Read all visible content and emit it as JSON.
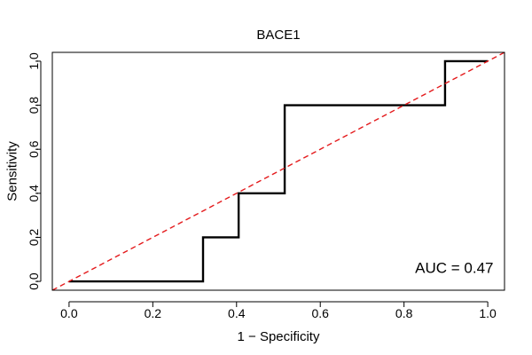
{
  "chart_data": {
    "type": "line",
    "title": "BACE1",
    "xlabel": "1 − Specificity",
    "ylabel": "Sensitivity",
    "xlim": [
      -0.04,
      1.04
    ],
    "ylim": [
      -0.04,
      1.04
    ],
    "x_ticks": [
      0.0,
      0.2,
      0.4,
      0.6,
      0.8,
      1.0
    ],
    "x_tick_labels": [
      "0.0",
      "0.2",
      "0.4",
      "0.6",
      "0.8",
      "1.0"
    ],
    "y_ticks": [
      0.0,
      0.2,
      0.4,
      0.6,
      0.8,
      1.0
    ],
    "y_tick_labels": [
      "0.0",
      "0.2",
      "0.4",
      "0.6",
      "0.8",
      "1.0"
    ],
    "grid": false,
    "legend": "none",
    "series": [
      {
        "x": [
          0.0,
          0.32,
          0.32,
          0.405,
          0.405,
          0.515,
          0.515,
          0.898,
          0.898,
          1.0
        ],
        "y": [
          0.0,
          0.0,
          0.2,
          0.2,
          0.4,
          0.4,
          0.8,
          0.8,
          1.0,
          1.0
        ],
        "color": "#000000",
        "style": "solid"
      },
      {
        "x": [
          -0.04,
          1.04
        ],
        "y": [
          -0.04,
          1.04
        ],
        "color": "#e41a1c",
        "style": "dashed"
      }
    ],
    "annotations": [
      {
        "text": "AUC = 0.47",
        "x": 0.92,
        "y": 0.06
      }
    ]
  }
}
